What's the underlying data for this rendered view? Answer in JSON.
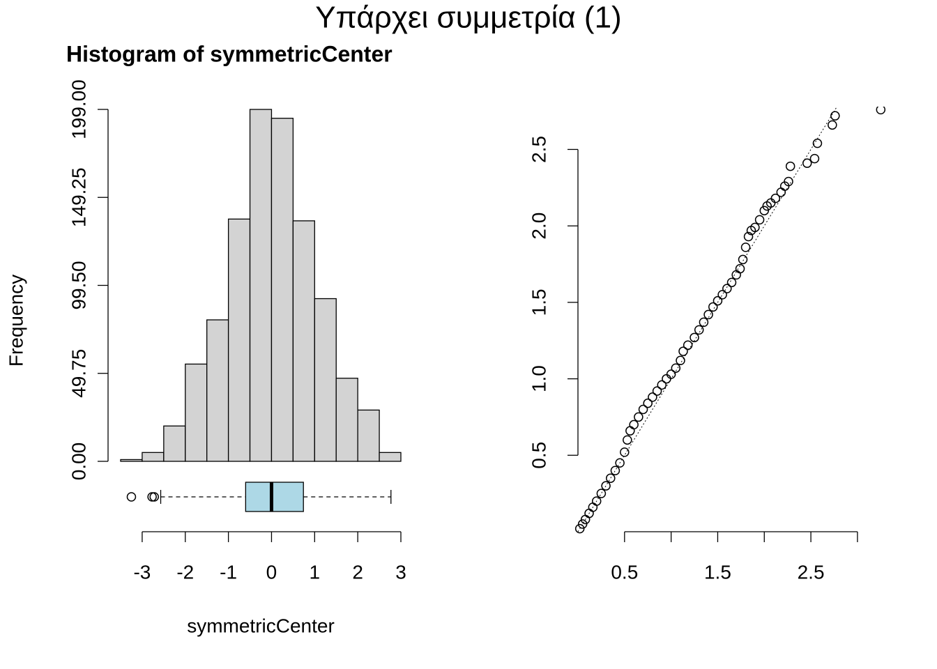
{
  "title": "Υπάρχει συμμετρία (1)",
  "chart_data": [
    {
      "type": "histogram",
      "title": "Histogram of symmetricCenter",
      "xlabel": "symmetricCenter",
      "ylabel": "Frequency",
      "bins": [
        -3.5,
        -3,
        -2.5,
        -2,
        -1.5,
        -1,
        -0.5,
        0,
        0.5,
        1,
        1.5,
        2,
        2.5,
        3
      ],
      "counts": [
        1,
        5,
        20,
        55,
        80,
        137,
        199,
        194,
        136,
        92,
        47,
        29,
        5
      ],
      "color": "#d3d3d3",
      "xlim": [
        -3.5,
        3
      ],
      "xticks": [
        -3,
        -2,
        -1,
        0,
        1,
        2,
        3
      ],
      "ylim": [
        0,
        199
      ],
      "yticks": [
        {
          "value": 0,
          "label": "0.00"
        },
        {
          "value": 49.75,
          "label": "49.75"
        },
        {
          "value": 99.5,
          "label": "99.50"
        },
        {
          "value": 149.25,
          "label": "149.25"
        },
        {
          "value": 199,
          "label": "199.00"
        }
      ],
      "boxplot": {
        "min": -2.57,
        "q1": -0.6,
        "median": 0,
        "q3": 0.74,
        "max": 2.77,
        "outliers": [
          -3.25,
          -2.77,
          -2.72
        ],
        "color": "#add8e6"
      }
    },
    {
      "type": "scatter",
      "x": [
        0.02,
        0.05,
        0.08,
        0.12,
        0.16,
        0.2,
        0.25,
        0.3,
        0.35,
        0.4,
        0.45,
        0.5,
        0.53,
        0.56,
        0.6,
        0.65,
        0.7,
        0.75,
        0.8,
        0.85,
        0.9,
        0.95,
        1.0,
        1.05,
        1.1,
        1.13,
        1.18,
        1.25,
        1.3,
        1.35,
        1.4,
        1.45,
        1.5,
        1.55,
        1.6,
        1.65,
        1.7,
        1.74,
        1.77,
        1.8,
        1.83,
        1.86,
        1.9,
        1.95,
        2.0,
        2.03,
        2.07,
        2.12,
        2.18,
        2.22,
        2.26,
        2.28,
        2.46,
        2.54,
        2.57,
        2.73,
        2.76,
        3.25
      ],
      "y": [
        0.02,
        0.05,
        0.08,
        0.12,
        0.16,
        0.2,
        0.25,
        0.3,
        0.35,
        0.4,
        0.45,
        0.52,
        0.6,
        0.66,
        0.7,
        0.75,
        0.8,
        0.84,
        0.88,
        0.92,
        0.96,
        1.0,
        1.03,
        1.07,
        1.12,
        1.18,
        1.22,
        1.27,
        1.32,
        1.37,
        1.42,
        1.47,
        1.51,
        1.55,
        1.59,
        1.63,
        1.68,
        1.72,
        1.78,
        1.86,
        1.93,
        1.97,
        1.99,
        2.04,
        2.1,
        2.13,
        2.15,
        2.18,
        2.22,
        2.26,
        2.29,
        2.39,
        2.41,
        2.44,
        2.54,
        2.66,
        2.72,
        2.76
      ],
      "xlim": [
        0,
        3.3
      ],
      "ylim": [
        0,
        2.78
      ],
      "xticks": [
        0.5,
        {
          "value": 1,
          "label": null
        },
        1.5,
        {
          "value": 2,
          "label": null
        },
        2.5,
        {
          "value": 3,
          "label": null
        }
      ],
      "yticks": [
        0.5,
        {
          "value": 1,
          "label": "1.0"
        },
        1.5,
        {
          "value": 2,
          "label": "2.0"
        },
        2.5
      ]
    }
  ]
}
